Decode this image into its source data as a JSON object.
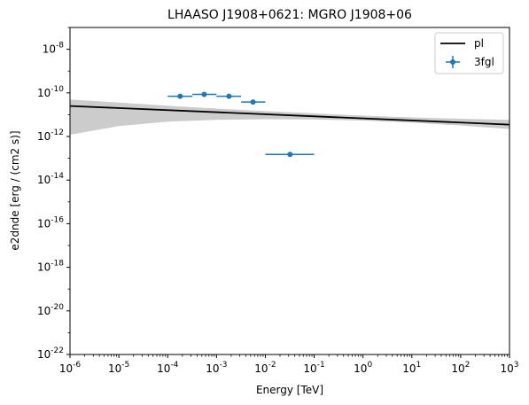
{
  "chart_data": {
    "type": "scatter",
    "title": "LHAASO J1908+0621: MGRO J1908+06",
    "xlabel": "Energy [TeV]",
    "ylabel": "e2dnde [erg / (cm2 s)]",
    "xscale": "log",
    "yscale": "log",
    "xlim": [
      1e-06,
      1000
    ],
    "ylim": [
      1e-22,
      1e-07
    ],
    "xticks": [
      "-6",
      "-5",
      "-4",
      "-3",
      "-2",
      "-1",
      "0",
      "1",
      "2",
      "3"
    ],
    "yticks": [
      "-22",
      "-20",
      "-18",
      "-16",
      "-14",
      "-12",
      "-10",
      "-8"
    ],
    "legend_position": "top-right",
    "grid": false,
    "series": [
      {
        "name": "pl",
        "kind": "line",
        "color": "#000000",
        "x": [
          1e-06,
          1000
        ],
        "y": [
          2.5e-11,
          3.5e-12
        ]
      },
      {
        "name": "3fgl",
        "kind": "errorbar",
        "color": "#1f77b4",
        "points": [
          {
            "x": 0.00018,
            "xlo": 0.0001,
            "xhi": 0.00032,
            "y": 7e-11
          },
          {
            "x": 0.00056,
            "xlo": 0.00032,
            "xhi": 0.001,
            "y": 8.5e-11
          },
          {
            "x": 0.0018,
            "xlo": 0.001,
            "xhi": 0.0032,
            "y": 7e-11
          },
          {
            "x": 0.0056,
            "xlo": 0.0032,
            "xhi": 0.01,
            "y": 3.8e-11
          },
          {
            "x": 0.032,
            "xlo": 0.01,
            "xhi": 0.1,
            "y": 1.5e-13
          }
        ]
      }
    ],
    "band": {
      "color": "#cccccc",
      "x": [
        1e-06,
        1e-05,
        0.0001,
        0.001,
        0.01,
        0.1,
        1,
        10,
        100,
        1000
      ],
      "upper": [
        5e-11,
        3.6e-11,
        2.6e-11,
        1.9e-11,
        1.45e-11,
        1.15e-11,
        9e-12,
        7.5e-12,
        6.5e-12,
        5.8e-12
      ],
      "lower": [
        1.2e-12,
        3e-12,
        4.8e-12,
        5.8e-12,
        6.2e-12,
        6e-12,
        5.3e-12,
        4.3e-12,
        3.2e-12,
        2.2e-12
      ]
    }
  }
}
